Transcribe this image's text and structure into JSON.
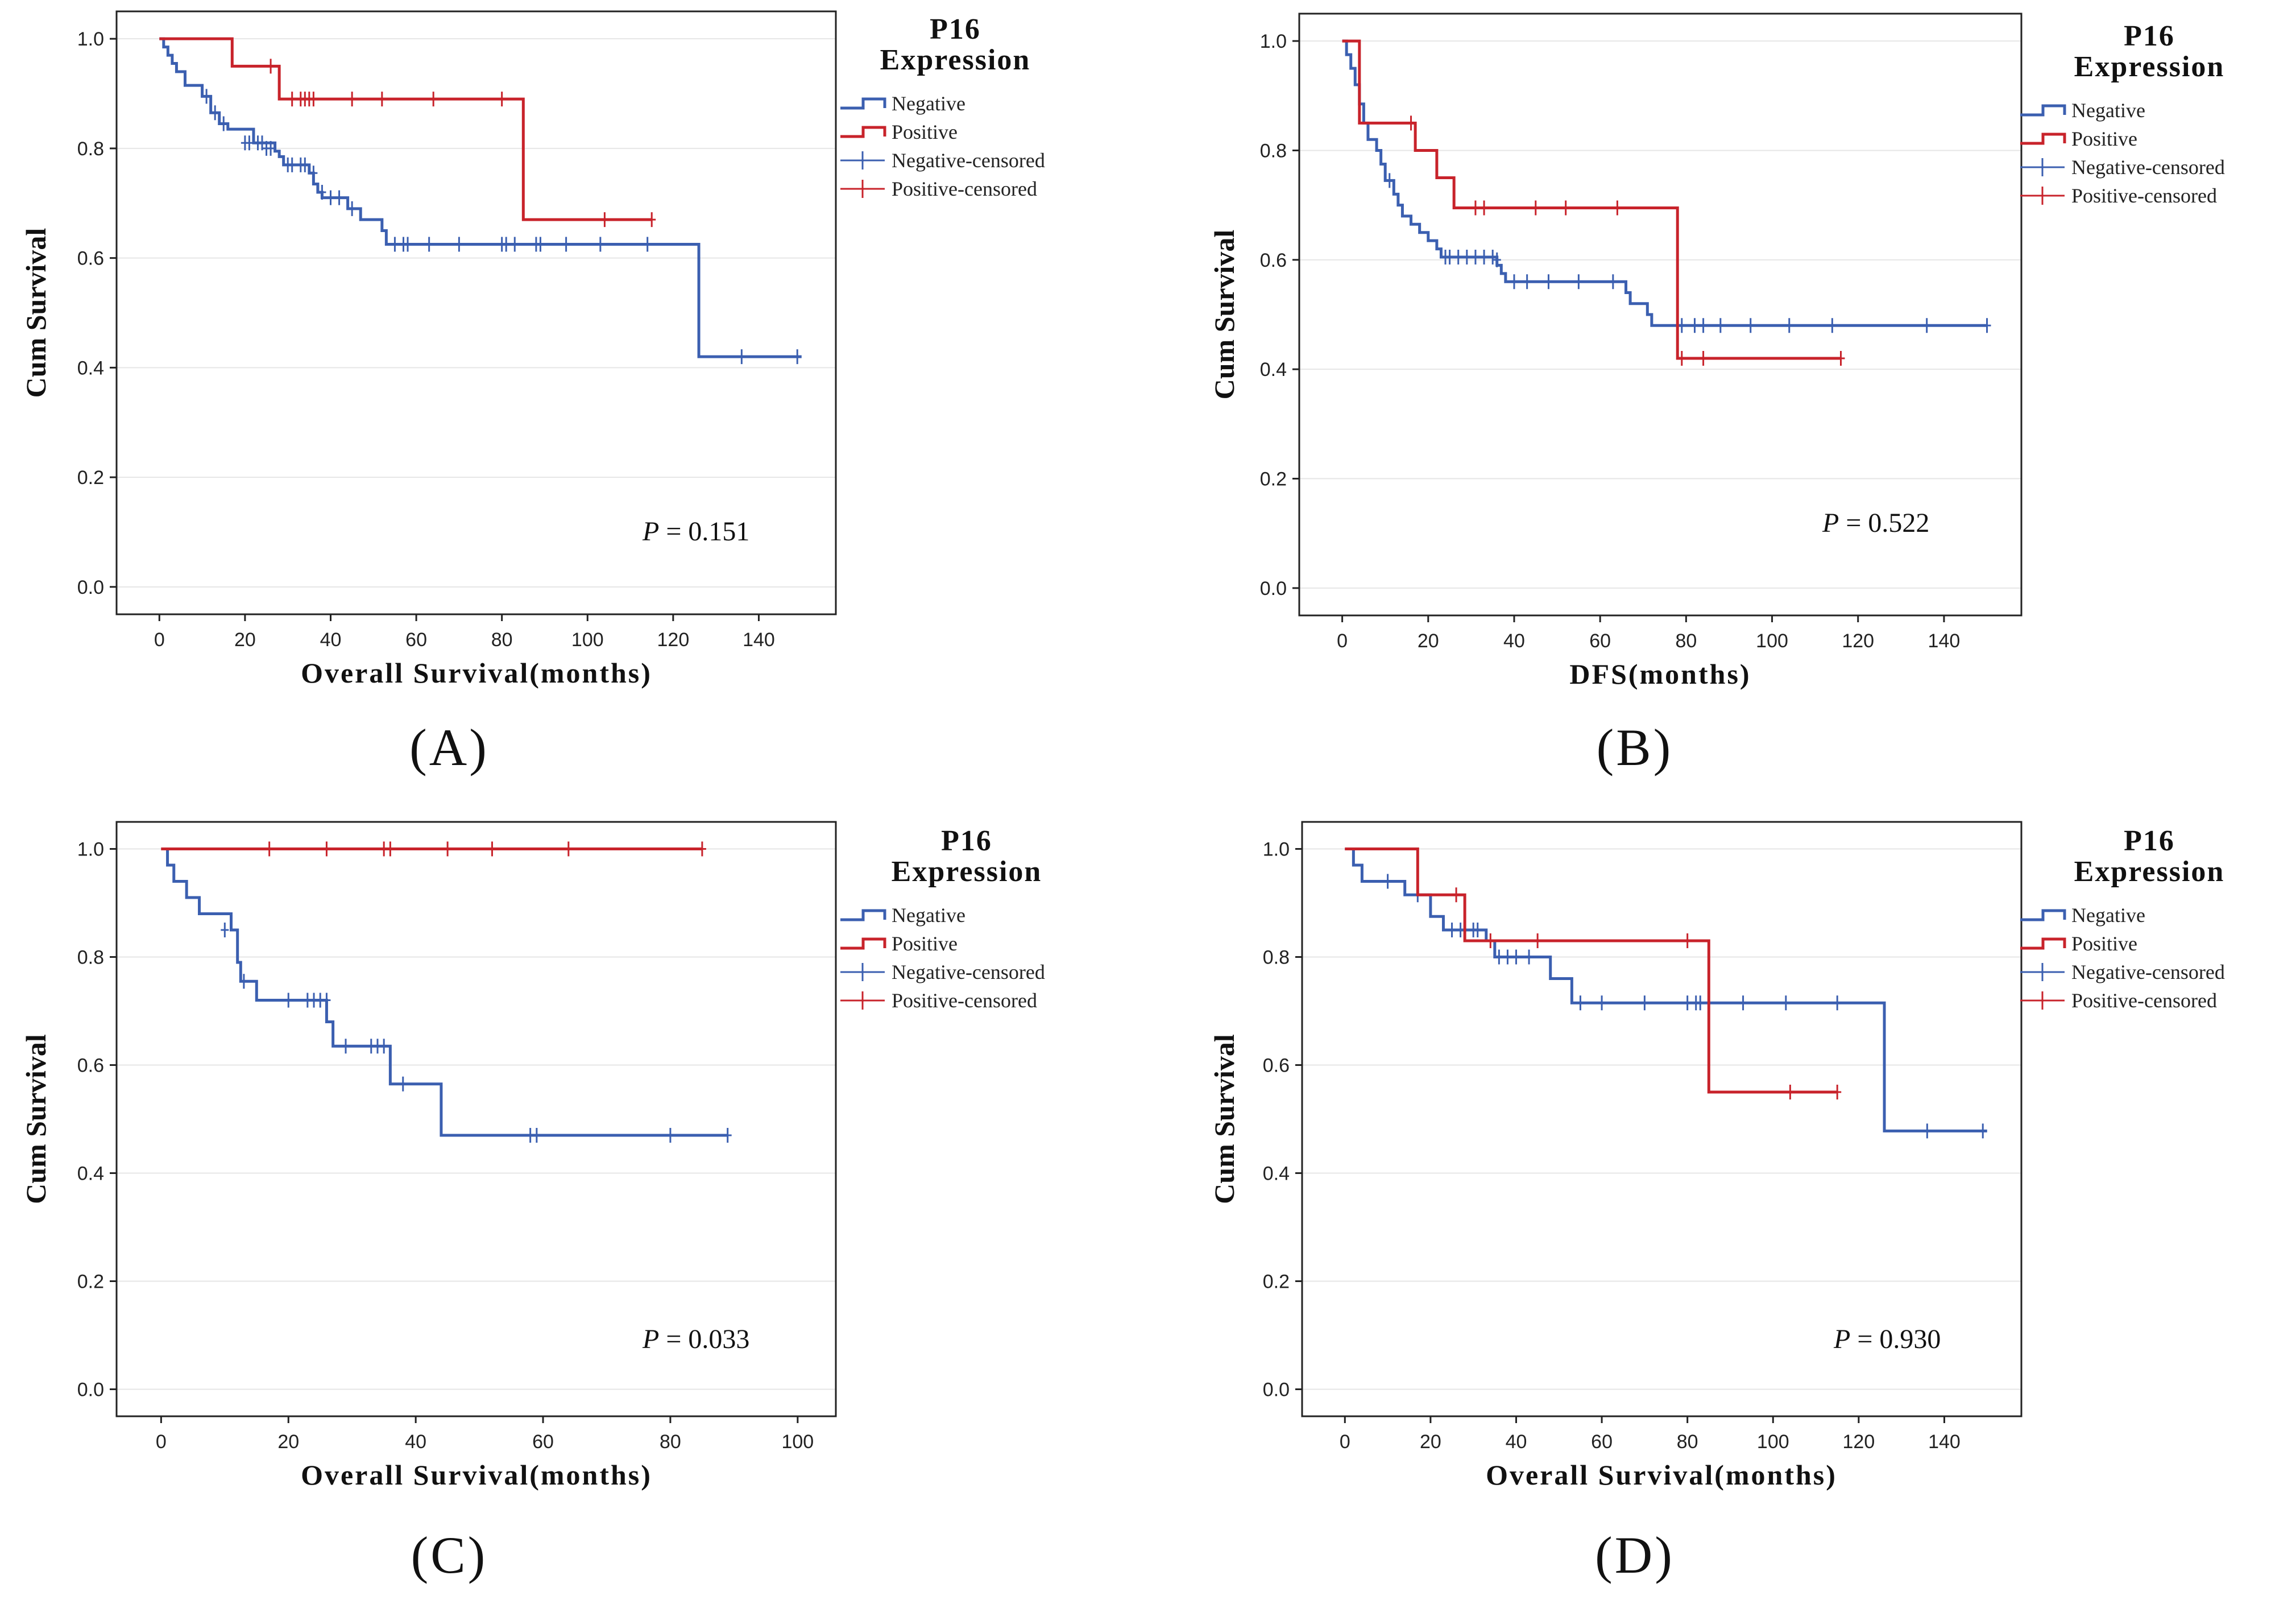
{
  "colors": {
    "negative": "#3B5FB0",
    "positive": "#C8232B",
    "grid": "#e6e6e6",
    "frame": "#222222"
  },
  "chart_data": [
    {
      "id": "A",
      "type": "line",
      "panel_label": "(A)",
      "xlabel": "Overall Survival(months)",
      "ylabel": "Cum Survival",
      "xlim": [
        -10,
        158
      ],
      "ylim": [
        -0.05,
        1.05
      ],
      "xticks": [
        0,
        20,
        40,
        60,
        80,
        100,
        120,
        140
      ],
      "yticks": [
        "0.0",
        "0.2",
        "0.4",
        "0.6",
        "0.8",
        "1.0"
      ],
      "legend_title": [
        "P16",
        "Expression"
      ],
      "legend": [
        "Negative",
        "Positive",
        "Negative-censored",
        "Positive-censored"
      ],
      "p_value": "= 0.151",
      "series": [
        {
          "name": "Negative",
          "steps": [
            [
              0,
              1.0
            ],
            [
              1,
              0.985
            ],
            [
              2,
              0.97
            ],
            [
              3,
              0.955
            ],
            [
              4,
              0.94
            ],
            [
              6,
              0.915
            ],
            [
              10,
              0.895
            ],
            [
              12,
              0.865
            ],
            [
              14,
              0.845
            ],
            [
              16,
              0.835
            ],
            [
              22,
              0.81
            ],
            [
              27,
              0.795
            ],
            [
              28,
              0.785
            ],
            [
              29,
              0.77
            ],
            [
              35,
              0.755
            ],
            [
              36,
              0.735
            ],
            [
              37,
              0.72
            ],
            [
              38,
              0.71
            ],
            [
              44,
              0.69
            ],
            [
              47,
              0.67
            ],
            [
              52,
              0.65
            ],
            [
              53,
              0.625
            ],
            [
              126,
              0.625
            ],
            [
              126,
              0.42
            ],
            [
              150,
              0.42
            ]
          ],
          "censored": [
            [
              11,
              0.895
            ],
            [
              13,
              0.865
            ],
            [
              15,
              0.845
            ],
            [
              20,
              0.81
            ],
            [
              21,
              0.81
            ],
            [
              23,
              0.81
            ],
            [
              24,
              0.81
            ],
            [
              25,
              0.8
            ],
            [
              26,
              0.8
            ],
            [
              30,
              0.77
            ],
            [
              31,
              0.77
            ],
            [
              33,
              0.77
            ],
            [
              34,
              0.77
            ],
            [
              36,
              0.755
            ],
            [
              38,
              0.72
            ],
            [
              40,
              0.71
            ],
            [
              42,
              0.71
            ],
            [
              45,
              0.69
            ],
            [
              55,
              0.625
            ],
            [
              57,
              0.625
            ],
            [
              58,
              0.625
            ],
            [
              63,
              0.625
            ],
            [
              70,
              0.625
            ],
            [
              80,
              0.625
            ],
            [
              81,
              0.625
            ],
            [
              83,
              0.625
            ],
            [
              88,
              0.625
            ],
            [
              89,
              0.625
            ],
            [
              95,
              0.625
            ],
            [
              103,
              0.625
            ],
            [
              114,
              0.625
            ],
            [
              136,
              0.42
            ],
            [
              149,
              0.42
            ]
          ]
        },
        {
          "name": "Positive",
          "steps": [
            [
              0,
              1.0
            ],
            [
              17,
              1.0
            ],
            [
              17,
              0.95
            ],
            [
              28,
              0.95
            ],
            [
              28,
              0.89
            ],
            [
              85,
              0.89
            ],
            [
              85,
              0.67
            ],
            [
              115,
              0.67
            ]
          ],
          "censored": [
            [
              26,
              0.95
            ],
            [
              31,
              0.89
            ],
            [
              33,
              0.89
            ],
            [
              34,
              0.89
            ],
            [
              35,
              0.89
            ],
            [
              36,
              0.89
            ],
            [
              45,
              0.89
            ],
            [
              52,
              0.89
            ],
            [
              64,
              0.89
            ],
            [
              80,
              0.89
            ],
            [
              104,
              0.67
            ],
            [
              115,
              0.67
            ]
          ]
        }
      ]
    },
    {
      "id": "B",
      "type": "line",
      "panel_label": "(B)",
      "xlabel": "DFS(months)",
      "ylabel": "Cum Survival",
      "xlim": [
        -10,
        158
      ],
      "ylim": [
        -0.05,
        1.05
      ],
      "xticks": [
        0,
        20,
        40,
        60,
        80,
        100,
        120,
        140
      ],
      "yticks": [
        "0.0",
        "0.2",
        "0.4",
        "0.6",
        "0.8",
        "1.0"
      ],
      "legend_title": [
        "P16",
        "Expression"
      ],
      "legend": [
        "Negative",
        "Positive",
        "Negative-censored",
        "Positive-censored"
      ],
      "p_value": "= 0.522",
      "series": [
        {
          "name": "Negative",
          "steps": [
            [
              0,
              1.0
            ],
            [
              1,
              0.975
            ],
            [
              2,
              0.95
            ],
            [
              3,
              0.92
            ],
            [
              4,
              0.885
            ],
            [
              5,
              0.85
            ],
            [
              6,
              0.82
            ],
            [
              8,
              0.8
            ],
            [
              9,
              0.775
            ],
            [
              10,
              0.745
            ],
            [
              12,
              0.72
            ],
            [
              13,
              0.7
            ],
            [
              14,
              0.68
            ],
            [
              16,
              0.665
            ],
            [
              18,
              0.65
            ],
            [
              20,
              0.635
            ],
            [
              22,
              0.62
            ],
            [
              23,
              0.605
            ],
            [
              36,
              0.59
            ],
            [
              37,
              0.575
            ],
            [
              38,
              0.56
            ],
            [
              66,
              0.54
            ],
            [
              67,
              0.52
            ],
            [
              71,
              0.5
            ],
            [
              72,
              0.48
            ],
            [
              150,
              0.48
            ]
          ],
          "censored": [
            [
              11,
              0.745
            ],
            [
              24,
              0.605
            ],
            [
              25,
              0.605
            ],
            [
              27,
              0.605
            ],
            [
              29,
              0.605
            ],
            [
              31,
              0.605
            ],
            [
              33,
              0.605
            ],
            [
              35,
              0.605
            ],
            [
              36,
              0.6
            ],
            [
              40,
              0.56
            ],
            [
              43,
              0.56
            ],
            [
              48,
              0.56
            ],
            [
              55,
              0.56
            ],
            [
              63,
              0.56
            ],
            [
              79,
              0.48
            ],
            [
              82,
              0.48
            ],
            [
              84,
              0.48
            ],
            [
              88,
              0.48
            ],
            [
              95,
              0.48
            ],
            [
              104,
              0.48
            ],
            [
              114,
              0.48
            ],
            [
              136,
              0.48
            ],
            [
              150,
              0.48
            ]
          ]
        },
        {
          "name": "Positive",
          "steps": [
            [
              0,
              1.0
            ],
            [
              4,
              1.0
            ],
            [
              4,
              0.85
            ],
            [
              17,
              0.85
            ],
            [
              17,
              0.8
            ],
            [
              22,
              0.8
            ],
            [
              22,
              0.75
            ],
            [
              26,
              0.75
            ],
            [
              26,
              0.695
            ],
            [
              78,
              0.695
            ],
            [
              78,
              0.42
            ],
            [
              116,
              0.42
            ]
          ],
          "censored": [
            [
              16,
              0.85
            ],
            [
              31,
              0.695
            ],
            [
              33,
              0.695
            ],
            [
              45,
              0.695
            ],
            [
              52,
              0.695
            ],
            [
              64,
              0.695
            ],
            [
              79,
              0.42
            ],
            [
              84,
              0.42
            ],
            [
              116,
              0.42
            ]
          ]
        }
      ]
    },
    {
      "id": "C",
      "type": "line",
      "panel_label": "(C)",
      "xlabel": "Overall Survival(months)",
      "ylabel": "Cum Survival",
      "xlim": [
        -7,
        106
      ],
      "ylim": [
        -0.05,
        1.05
      ],
      "xticks": [
        0,
        20,
        40,
        60,
        80,
        100
      ],
      "yticks": [
        "0.0",
        "0.2",
        "0.4",
        "0.6",
        "0.8",
        "1.0"
      ],
      "legend_title": [
        "P16",
        "Expression"
      ],
      "legend": [
        "Negative",
        "Positive",
        "Negative-censored",
        "Positive-censored"
      ],
      "p_value": "= 0.033",
      "series": [
        {
          "name": "Negative",
          "steps": [
            [
              0,
              1.0
            ],
            [
              1,
              0.97
            ],
            [
              2,
              0.94
            ],
            [
              4,
              0.91
            ],
            [
              6,
              0.88
            ],
            [
              11,
              0.85
            ],
            [
              12,
              0.79
            ],
            [
              12.5,
              0.755
            ],
            [
              15,
              0.72
            ],
            [
              26,
              0.72
            ],
            [
              26,
              0.68
            ],
            [
              27,
              0.635
            ],
            [
              36,
              0.635
            ],
            [
              36,
              0.565
            ],
            [
              44,
              0.565
            ],
            [
              44,
              0.47
            ],
            [
              89,
              0.47
            ]
          ],
          "censored": [
            [
              10,
              0.85
            ],
            [
              13,
              0.755
            ],
            [
              20,
              0.72
            ],
            [
              23,
              0.72
            ],
            [
              24,
              0.72
            ],
            [
              25,
              0.72
            ],
            [
              26,
              0.72
            ],
            [
              29,
              0.635
            ],
            [
              33,
              0.635
            ],
            [
              34,
              0.635
            ],
            [
              35,
              0.635
            ],
            [
              38,
              0.565
            ],
            [
              58,
              0.47
            ],
            [
              59,
              0.47
            ],
            [
              80,
              0.47
            ],
            [
              89,
              0.47
            ]
          ]
        },
        {
          "name": "Positive",
          "steps": [
            [
              0,
              1.0
            ],
            [
              85,
              1.0
            ]
          ],
          "censored": [
            [
              17,
              1.0
            ],
            [
              26,
              1.0
            ],
            [
              35,
              1.0
            ],
            [
              36,
              1.0
            ],
            [
              45,
              1.0
            ],
            [
              52,
              1.0
            ],
            [
              64,
              1.0
            ],
            [
              85,
              1.0
            ]
          ]
        }
      ]
    },
    {
      "id": "D",
      "type": "line",
      "panel_label": "(D)",
      "xlabel": "Overall Survival(months)",
      "ylabel": "Cum Survival",
      "xlim": [
        -10,
        158
      ],
      "ylim": [
        -0.05,
        1.05
      ],
      "xticks": [
        0,
        20,
        40,
        60,
        80,
        100,
        120,
        140
      ],
      "yticks": [
        "0.0",
        "0.2",
        "0.4",
        "0.6",
        "0.8",
        "1.0"
      ],
      "legend_title": [
        "P16",
        "Expression"
      ],
      "legend": [
        "Negative",
        "Positive",
        "Negative-censored",
        "Positive-censored"
      ],
      "p_value": "= 0.930",
      "series": [
        {
          "name": "Negative",
          "steps": [
            [
              0,
              1.0
            ],
            [
              2,
              0.97
            ],
            [
              4,
              0.94
            ],
            [
              14,
              0.915
            ],
            [
              20,
              0.875
            ],
            [
              23,
              0.85
            ],
            [
              33,
              0.83
            ],
            [
              35,
              0.8
            ],
            [
              48,
              0.76
            ],
            [
              53,
              0.715
            ],
            [
              126,
              0.715
            ],
            [
              126,
              0.478
            ],
            [
              150,
              0.478
            ]
          ],
          "censored": [
            [
              10,
              0.94
            ],
            [
              17,
              0.915
            ],
            [
              25,
              0.85
            ],
            [
              27,
              0.85
            ],
            [
              30,
              0.85
            ],
            [
              31,
              0.85
            ],
            [
              36,
              0.8
            ],
            [
              38,
              0.8
            ],
            [
              40,
              0.8
            ],
            [
              43,
              0.8
            ],
            [
              55,
              0.715
            ],
            [
              60,
              0.715
            ],
            [
              70,
              0.715
            ],
            [
              80,
              0.715
            ],
            [
              82,
              0.715
            ],
            [
              83,
              0.715
            ],
            [
              93,
              0.715
            ],
            [
              103,
              0.715
            ],
            [
              115,
              0.715
            ],
            [
              136,
              0.478
            ],
            [
              149,
              0.478
            ]
          ]
        },
        {
          "name": "Positive",
          "steps": [
            [
              0,
              1.0
            ],
            [
              17,
              1.0
            ],
            [
              17,
              0.915
            ],
            [
              28,
              0.915
            ],
            [
              28,
              0.83
            ],
            [
              85,
              0.83
            ],
            [
              85,
              0.55
            ],
            [
              115,
              0.55
            ]
          ],
          "censored": [
            [
              26,
              0.915
            ],
            [
              34,
              0.83
            ],
            [
              45,
              0.83
            ],
            [
              80,
              0.83
            ],
            [
              104,
              0.55
            ],
            [
              115,
              0.55
            ]
          ]
        }
      ]
    }
  ]
}
